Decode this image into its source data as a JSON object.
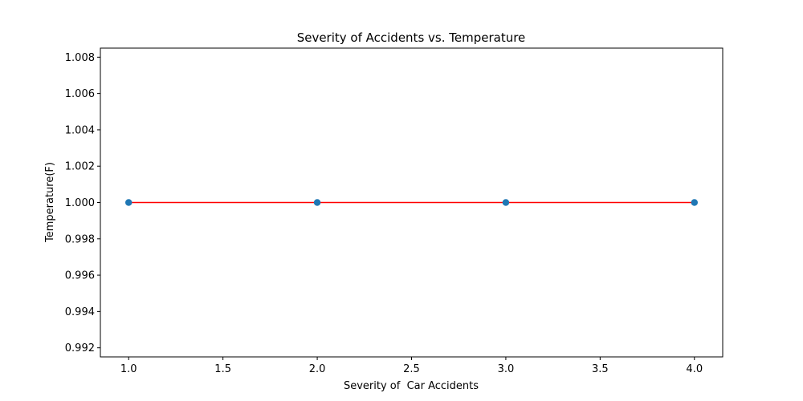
{
  "chart_data": {
    "type": "scatter",
    "title": "Severity of Accidents vs. Temperature",
    "xlabel": "Severity of  Car Accidents",
    "ylabel": "Temperature(F)",
    "xlim": [
      0.85,
      4.15
    ],
    "ylim": [
      0.9915,
      1.0085
    ],
    "x_ticks": [
      1.0,
      1.5,
      2.0,
      2.5,
      3.0,
      3.5,
      4.0
    ],
    "x_tick_labels": [
      "1.0",
      "1.5",
      "2.0",
      "2.5",
      "3.0",
      "3.5",
      "4.0"
    ],
    "y_ticks": [
      0.992,
      0.994,
      0.996,
      0.998,
      1.0,
      1.002,
      1.004,
      1.006,
      1.008
    ],
    "y_tick_labels": [
      "0.992",
      "0.994",
      "0.996",
      "0.998",
      "1.000",
      "1.002",
      "1.004",
      "1.006",
      "1.008"
    ],
    "grid": false,
    "legend": false,
    "series": [
      {
        "kind": "scatter",
        "color": "#1f77b4",
        "x": [
          1,
          2,
          3,
          4
        ],
        "y": [
          1,
          1,
          1,
          1
        ]
      },
      {
        "kind": "line",
        "color": "#ff0000",
        "x": [
          1,
          2,
          3,
          4
        ],
        "y": [
          1,
          1,
          1,
          1
        ]
      }
    ]
  }
}
